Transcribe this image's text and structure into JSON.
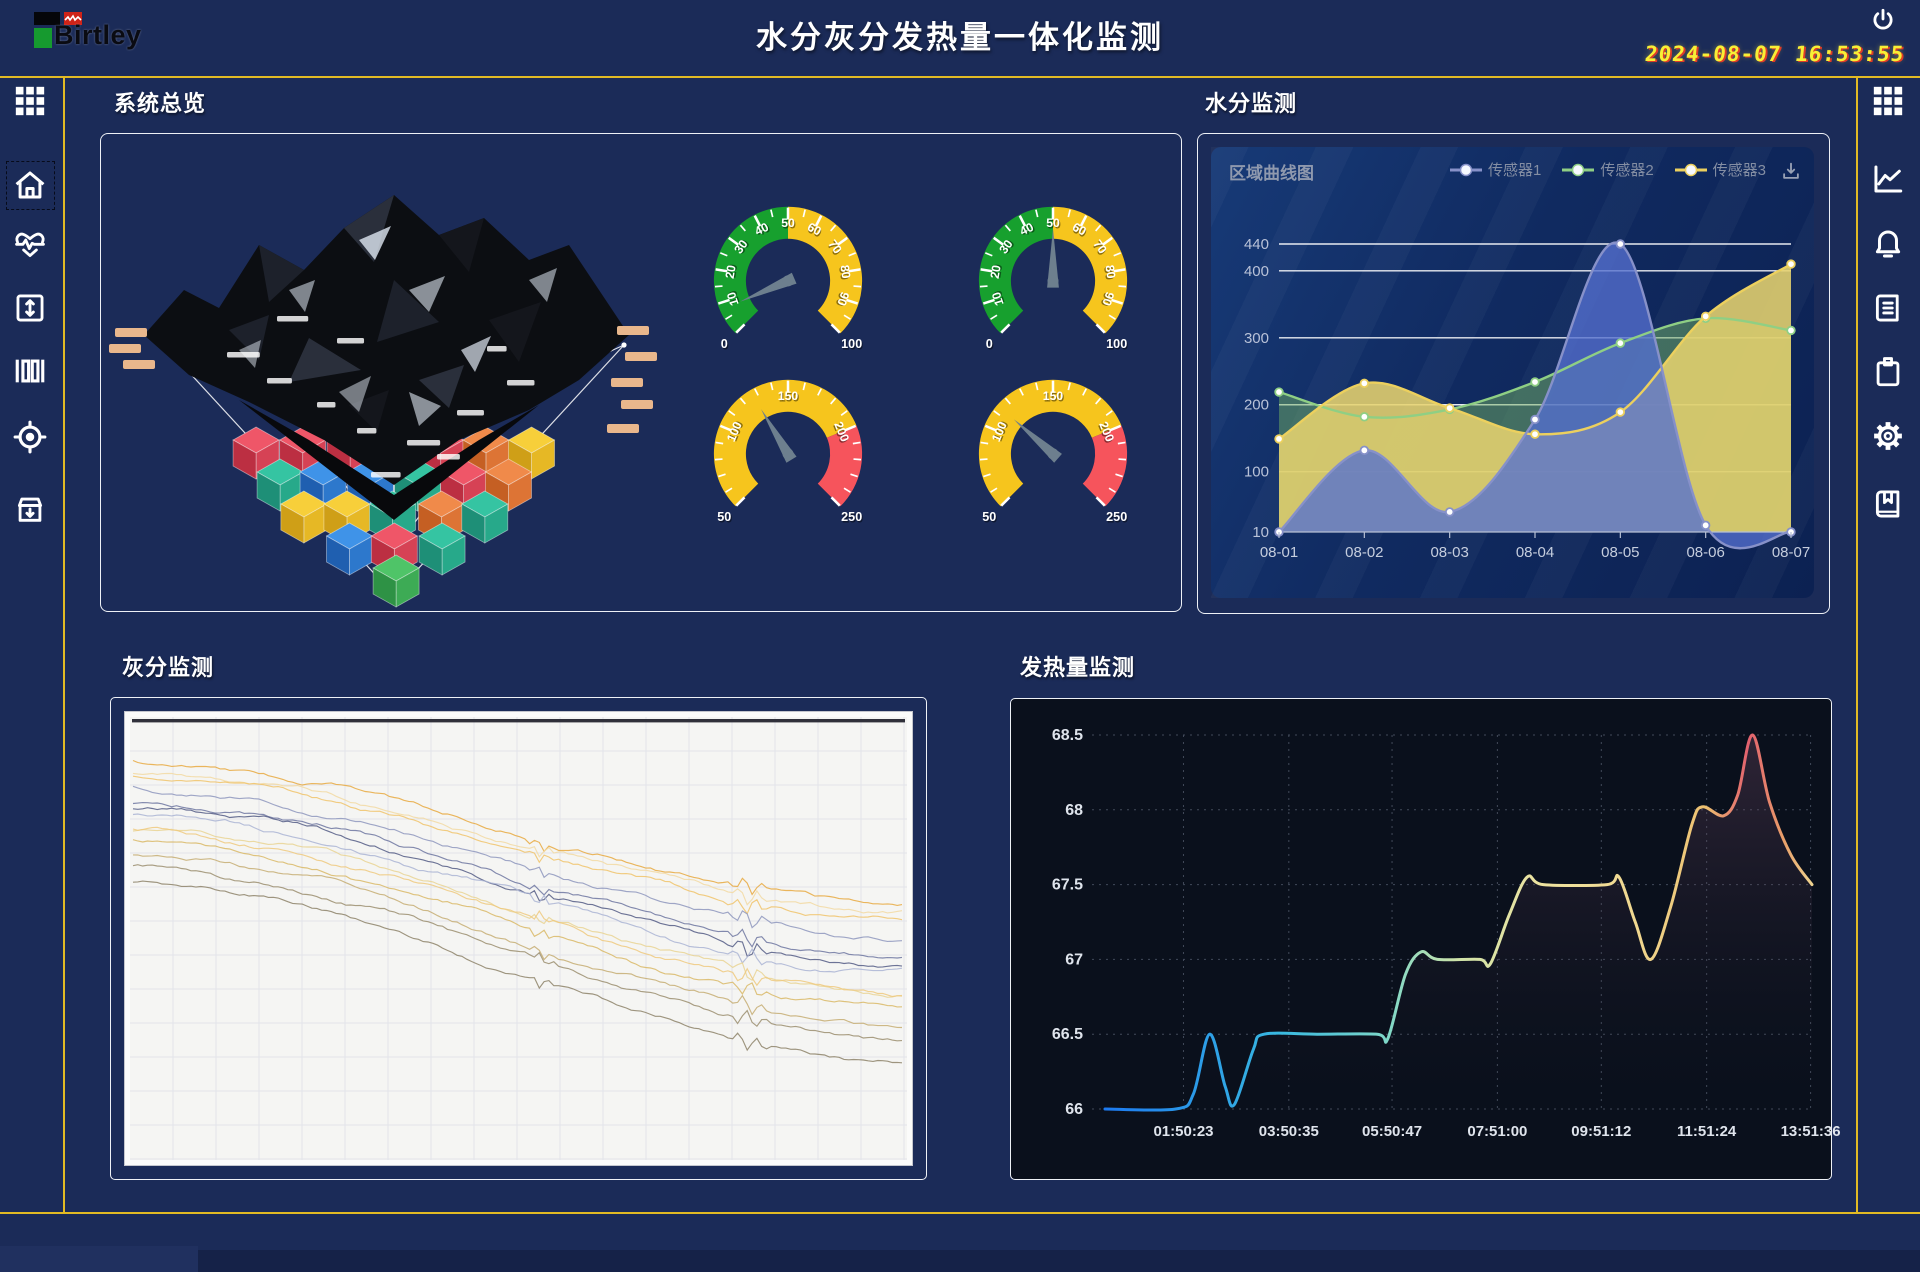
{
  "header": {
    "logo_text": "Birtley",
    "title": "水分灰分发热量一体化监测",
    "datetime": "2024-08-07  16:53:55"
  },
  "left_sidebar": {
    "items": [
      {
        "icon": "grid-menu-icon"
      },
      {
        "icon": "home-icon",
        "selected": true
      },
      {
        "icon": "heart-pulse-icon"
      },
      {
        "icon": "vertical-resize-icon"
      },
      {
        "icon": "column-bars-icon"
      },
      {
        "icon": "target-icon"
      },
      {
        "icon": "archive-download-icon"
      }
    ]
  },
  "right_sidebar": {
    "items": [
      {
        "icon": "grid-menu-icon"
      },
      {
        "icon": "line-chart-icon"
      },
      {
        "icon": "bell-icon"
      },
      {
        "icon": "document-icon"
      },
      {
        "icon": "clipboard-icon"
      },
      {
        "icon": "gear-icon"
      },
      {
        "icon": "book-icon"
      }
    ]
  },
  "panels": {
    "overview": {
      "title": "系统总览"
    },
    "moisture": {
      "title": "水分监测",
      "chart_label": "区域曲线图"
    },
    "ash": {
      "title": "灰分监测"
    },
    "calorific": {
      "title": "发热量监测"
    }
  },
  "colors": {
    "accent_yellow_line": "#e2ba24",
    "clock_yellow": "#f8ef35",
    "clock_red_shadow": "#dd3b28",
    "gauge_green": "#17a02e",
    "gauge_yellow": "#f6c51d",
    "gauge_red": "#f6545c",
    "needle_grey": "#6d7f8e",
    "cube_palette": [
      {
        "t": "#35c4a2",
        "l": "#1e8f77",
        "r": "#27a98a"
      },
      {
        "t": "#3f93e8",
        "l": "#1f5fb0",
        "r": "#2d78cc"
      },
      {
        "t": "#ef5668",
        "l": "#bc2f42",
        "r": "#d64255"
      },
      {
        "t": "#f7cf3a",
        "l": "#cf9f17",
        "r": "#e6b825"
      },
      {
        "t": "#f08a4a",
        "l": "#c55f23",
        "r": "#dd7435"
      },
      {
        "t": "#4fc468",
        "l": "#2e9245",
        "r": "#3dab55"
      }
    ]
  },
  "chart_data": [
    {
      "type": "gauge",
      "name": "overview-gauge-1",
      "min": 0,
      "max": 100,
      "major_tick": 10,
      "minor_tick": 5,
      "value": 8,
      "bands": [
        {
          "from": 0,
          "to": 50,
          "color": "#17a02e"
        },
        {
          "from": 50,
          "to": 100,
          "color": "#f6c51d"
        }
      ]
    },
    {
      "type": "gauge",
      "name": "overview-gauge-2",
      "min": 0,
      "max": 100,
      "major_tick": 10,
      "minor_tick": 5,
      "value": 50,
      "bands": [
        {
          "from": 0,
          "to": 50,
          "color": "#17a02e"
        },
        {
          "from": 50,
          "to": 100,
          "color": "#f6c51d"
        }
      ]
    },
    {
      "type": "gauge",
      "name": "overview-gauge-3",
      "min": 50,
      "max": 250,
      "major_tick": 50,
      "minor_tick": 10,
      "value": 127,
      "bands": [
        {
          "from": 50,
          "to": 200,
          "color": "#f6c51d"
        },
        {
          "from": 200,
          "to": 250,
          "color": "#f6545c"
        }
      ]
    },
    {
      "type": "gauge",
      "name": "overview-gauge-4",
      "min": 50,
      "max": 250,
      "major_tick": 50,
      "minor_tick": 10,
      "value": 114,
      "bands": [
        {
          "from": 50,
          "to": 200,
          "color": "#f6c51d"
        },
        {
          "from": 200,
          "to": 250,
          "color": "#f6545c"
        }
      ]
    },
    {
      "type": "area",
      "name": "moisture-area-chart",
      "title": "区域曲线图",
      "categories": [
        "08-01",
        "08-02",
        "08-03",
        "08-04",
        "08-05",
        "08-06",
        "08-07"
      ],
      "y_ticks": [
        440,
        400,
        300,
        200,
        100,
        10
      ],
      "ylim": [
        10,
        440
      ],
      "grid": true,
      "legend_position": "top-right",
      "draw_order": [
        1,
        2,
        0
      ],
      "series": [
        {
          "name": "传感器1",
          "color": "#8791c9",
          "fill": "#5470cf",
          "fill_opacity": 0.78,
          "values": [
            10,
            132,
            40,
            178,
            440,
            20,
            10
          ]
        },
        {
          "name": "传感器2",
          "color": "#8fcf84",
          "fill": "#6fae62",
          "fill_opacity": 0.5,
          "values": [
            219,
            182,
            193,
            234,
            292,
            329,
            311
          ]
        },
        {
          "name": "传感器3",
          "color": "#ecd05e",
          "fill": "#e6d36e",
          "fill_opacity": 0.88,
          "values": [
            149,
            232,
            195,
            156,
            189,
            332,
            410
          ]
        }
      ]
    },
    {
      "type": "multi-line",
      "name": "ash-spectra-chart",
      "background": "#f5f5f3",
      "grid": true,
      "seed": 7,
      "lines": [
        {
          "y0": 0.1,
          "y1": 0.42,
          "color": "#e7a93f"
        },
        {
          "y0": 0.12,
          "y1": 0.44,
          "color": "#f2d9a2"
        },
        {
          "y0": 0.13,
          "y1": 0.46,
          "color": "#f0c36a"
        },
        {
          "y0": 0.16,
          "y1": 0.5,
          "color": "#8e97bd"
        },
        {
          "y0": 0.19,
          "y1": 0.54,
          "color": "#6d76a0"
        },
        {
          "y0": 0.2,
          "y1": 0.56,
          "color": "#535c85"
        },
        {
          "y0": 0.22,
          "y1": 0.58,
          "color": "#aab4d4"
        },
        {
          "y0": 0.25,
          "y1": 0.62,
          "color": "#e9d393"
        },
        {
          "y0": 0.26,
          "y1": 0.63,
          "color": "#efc97e"
        },
        {
          "y0": 0.28,
          "y1": 0.66,
          "color": "#d9b966"
        },
        {
          "y0": 0.31,
          "y1": 0.7,
          "color": "#c5ad72"
        },
        {
          "y0": 0.34,
          "y1": 0.73,
          "color": "#9b8e6e"
        },
        {
          "y0": 0.37,
          "y1": 0.78,
          "color": "#8d8268"
        }
      ]
    },
    {
      "type": "line",
      "name": "calorific-line-chart",
      "ylim": [
        66,
        68.5
      ],
      "y_ticks": [
        "68.5",
        "68",
        "67.5",
        "67",
        "66.5",
        "66"
      ],
      "x_ticks": [
        "01:50:23",
        "03:50:35",
        "05:50:47",
        "07:51:00",
        "09:51:12",
        "11:51:24",
        "13:51:36"
      ],
      "x_tick_t": [
        0.111,
        0.26,
        0.406,
        0.555,
        0.702,
        0.851,
        0.998
      ],
      "points": [
        [
          0,
          66
        ],
        [
          0.1,
          66
        ],
        [
          0.125,
          66.1
        ],
        [
          0.148,
          66.5
        ],
        [
          0.17,
          66.15
        ],
        [
          0.183,
          66.03
        ],
        [
          0.21,
          66.4
        ],
        [
          0.225,
          66.5
        ],
        [
          0.3,
          66.5
        ],
        [
          0.385,
          66.5
        ],
        [
          0.4,
          66.47
        ],
        [
          0.425,
          66.9
        ],
        [
          0.447,
          67.05
        ],
        [
          0.47,
          67
        ],
        [
          0.53,
          67
        ],
        [
          0.545,
          66.97
        ],
        [
          0.572,
          67.3
        ],
        [
          0.597,
          67.55
        ],
        [
          0.62,
          67.5
        ],
        [
          0.71,
          67.5
        ],
        [
          0.727,
          67.55
        ],
        [
          0.75,
          67.25
        ],
        [
          0.772,
          67.0
        ],
        [
          0.8,
          67.35
        ],
        [
          0.83,
          67.9
        ],
        [
          0.845,
          68.02
        ],
        [
          0.875,
          67.96
        ],
        [
          0.895,
          68.1
        ],
        [
          0.916,
          68.5
        ],
        [
          0.94,
          68.05
        ],
        [
          0.97,
          67.7
        ],
        [
          1,
          67.5
        ]
      ],
      "line_gradient": [
        [
          "0%",
          "#1d7af0"
        ],
        [
          "25%",
          "#39b9e0"
        ],
        [
          "40%",
          "#7fd8c8"
        ],
        [
          "50%",
          "#cfe3a8"
        ],
        [
          "62%",
          "#efe3a0"
        ],
        [
          "75%",
          "#f0d890"
        ],
        [
          "85%",
          "#edc070"
        ],
        [
          "91%",
          "#e2606e"
        ],
        [
          "96%",
          "#e9a06a"
        ],
        [
          "100%",
          "#efd490"
        ]
      ],
      "area_gradient_top": "rgba(135,85,115,0.30)",
      "area_gradient_bottom": "rgba(15,20,32,0.02)"
    }
  ]
}
